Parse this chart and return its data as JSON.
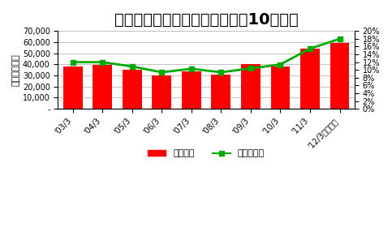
{
  "title": "オリエンタルランド　営業利益10年推移",
  "ylabel_left": "単位：百万円",
  "categories": [
    "'03/3",
    "'04/3",
    "'05/3",
    "'06/3",
    "'07/3",
    "'08/3",
    "'09/3",
    "'10/3",
    "'11/3",
    "'12/3（予想）"
  ],
  "bar_values": [
    38000,
    39500,
    35000,
    30000,
    34000,
    31000,
    40000,
    38000,
    54000,
    59000
  ],
  "line_values": [
    0.12,
    0.12,
    0.109,
    0.094,
    0.103,
    0.094,
    0.104,
    0.114,
    0.155,
    0.18
  ],
  "bar_color": "#FF0000",
  "line_color": "#00AA00",
  "marker_color": "#00AA00",
  "ylim_left": [
    0,
    70000
  ],
  "ylim_right": [
    0,
    0.2
  ],
  "yticks_left": [
    0,
    10000,
    20000,
    30000,
    40000,
    50000,
    60000,
    70000
  ],
  "ytick_labels_left": [
    "-",
    "10,000",
    "20,000",
    "30,000",
    "40,000",
    "50,000",
    "60,000",
    "70,000"
  ],
  "yticks_right": [
    0,
    0.02,
    0.04,
    0.06,
    0.08,
    0.1,
    0.12,
    0.14,
    0.16,
    0.18,
    0.2
  ],
  "ytick_labels_right": [
    "0%",
    "2%",
    "4%",
    "6%",
    "8%",
    "10%",
    "12%",
    "14%",
    "16%",
    "18%",
    "20%"
  ],
  "legend_bar_label": "営業利益",
  "legend_line_label": "営業利益率",
  "bg_color": "#FFFFFF",
  "title_fontsize": 14,
  "tick_fontsize": 7,
  "legend_fontsize": 8,
  "ylabel_fontsize": 8
}
